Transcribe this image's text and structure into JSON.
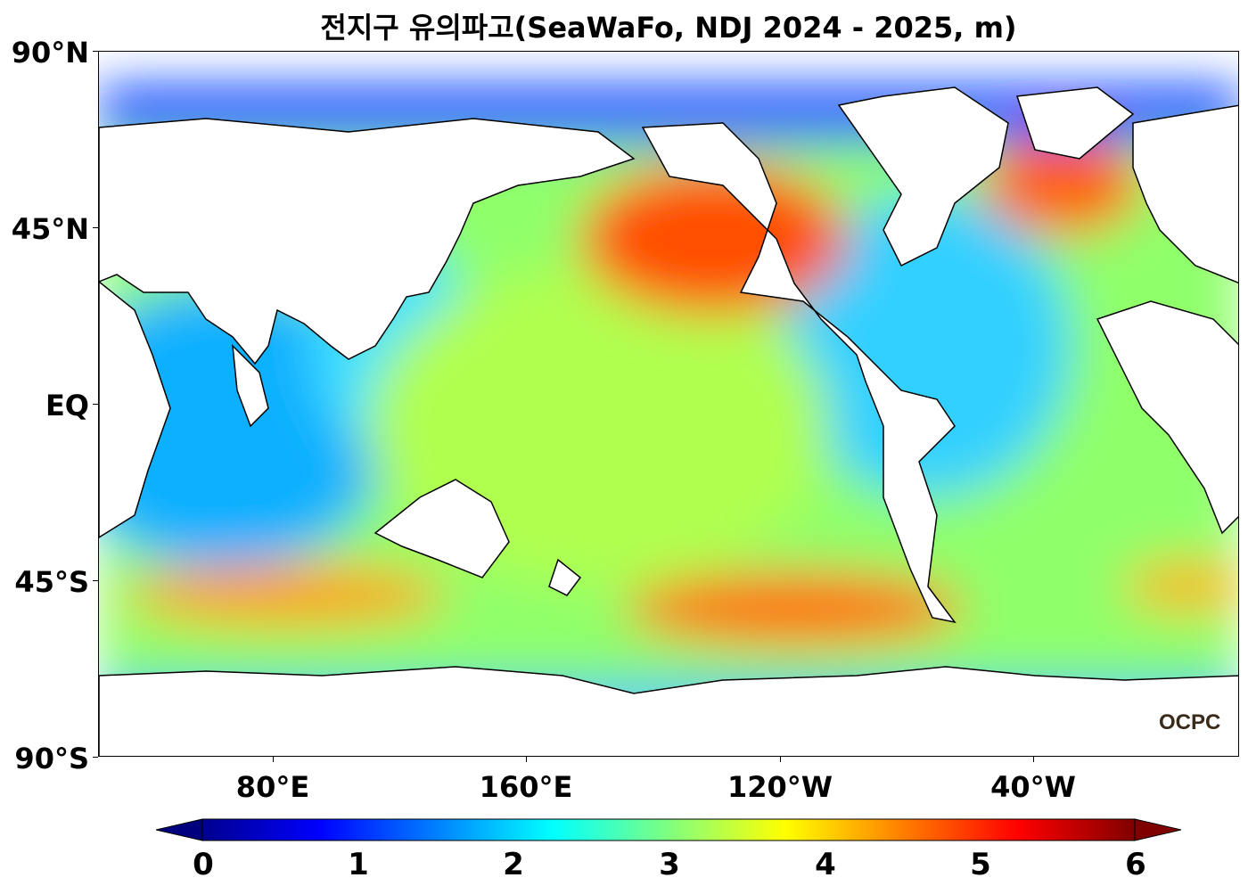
{
  "title": "전지구 유의파고(SeaWaFo, NDJ 2024 - 2025, m)",
  "y_axis": {
    "labels": [
      "90°N",
      "45°N",
      "EQ",
      "45°S",
      "90°S"
    ]
  },
  "x_axis": {
    "labels": [
      "80°E",
      "160°E",
      "120°W",
      "40°W"
    ]
  },
  "colorbar": {
    "ticks": [
      "0",
      "1",
      "2",
      "3",
      "4",
      "5",
      "6"
    ],
    "min": 0,
    "max": 6,
    "extend": "both"
  },
  "logo_text": "OCPC",
  "colors": {
    "land": "#ffffff",
    "coast": "#000000",
    "colormap": "jet"
  }
}
